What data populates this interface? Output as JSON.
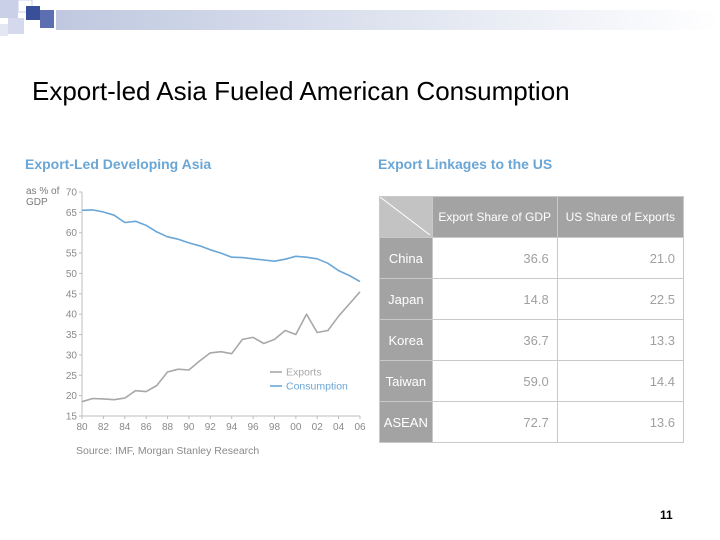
{
  "slide": {
    "title": "Export-led Asia Fueled American Consumption",
    "page_number": "11"
  },
  "chart_data": [
    {
      "type": "line",
      "title": "Export-Led Developing Asia",
      "ylabel": "as % of GDP",
      "xlabel": "",
      "x": [
        80,
        81,
        82,
        83,
        84,
        85,
        86,
        87,
        88,
        89,
        90,
        91,
        92,
        93,
        94,
        95,
        96,
        97,
        98,
        99,
        100,
        101,
        102,
        103,
        104,
        105,
        106
      ],
      "x_tick_labels": [
        "80",
        "82",
        "84",
        "86",
        "88",
        "90",
        "92",
        "94",
        "96",
        "98",
        "00",
        "02",
        "04",
        "06"
      ],
      "ylim": [
        15,
        70
      ],
      "y_ticks": [
        15,
        20,
        25,
        30,
        35,
        40,
        45,
        50,
        55,
        60,
        65,
        70
      ],
      "series": [
        {
          "name": "Exports",
          "color": "#a8a8a8",
          "values": [
            18.5,
            19.3,
            19.2,
            19.0,
            19.4,
            21.2,
            21.0,
            22.5,
            25.8,
            26.5,
            26.3,
            28.5,
            30.5,
            30.8,
            30.3,
            33.8,
            34.3,
            32.8,
            33.8,
            36.0,
            35.0,
            40.0,
            35.5,
            36.0,
            39.5,
            42.5,
            45.5
          ]
        },
        {
          "name": "Consumption",
          "color": "#6aa6d6",
          "values": [
            65.5,
            65.6,
            65.1,
            64.3,
            62.5,
            62.8,
            61.8,
            60.2,
            59.0,
            58.4,
            57.5,
            56.8,
            55.8,
            55.0,
            54.0,
            53.9,
            53.6,
            53.3,
            53.0,
            53.5,
            54.2,
            54.0,
            53.6,
            52.5,
            50.7,
            49.5,
            48.0
          ]
        }
      ],
      "legend_position": "bottom-right",
      "source": "Source: IMF, Morgan Stanley Research"
    },
    {
      "type": "table",
      "title": "Export Linkages to the US",
      "columns": [
        "Export Share of GDP",
        "US Share of Exports"
      ],
      "rows": [
        {
          "label": "China",
          "values": [
            "36.6",
            "21.0"
          ]
        },
        {
          "label": "Japan",
          "values": [
            "14.8",
            "22.5"
          ]
        },
        {
          "label": "Korea",
          "values": [
            "36.7",
            "13.3"
          ]
        },
        {
          "label": "Taiwan",
          "values": [
            "59.0",
            "14.4"
          ]
        },
        {
          "label": "ASEAN",
          "values": [
            "72.7",
            "13.6"
          ]
        }
      ]
    }
  ]
}
